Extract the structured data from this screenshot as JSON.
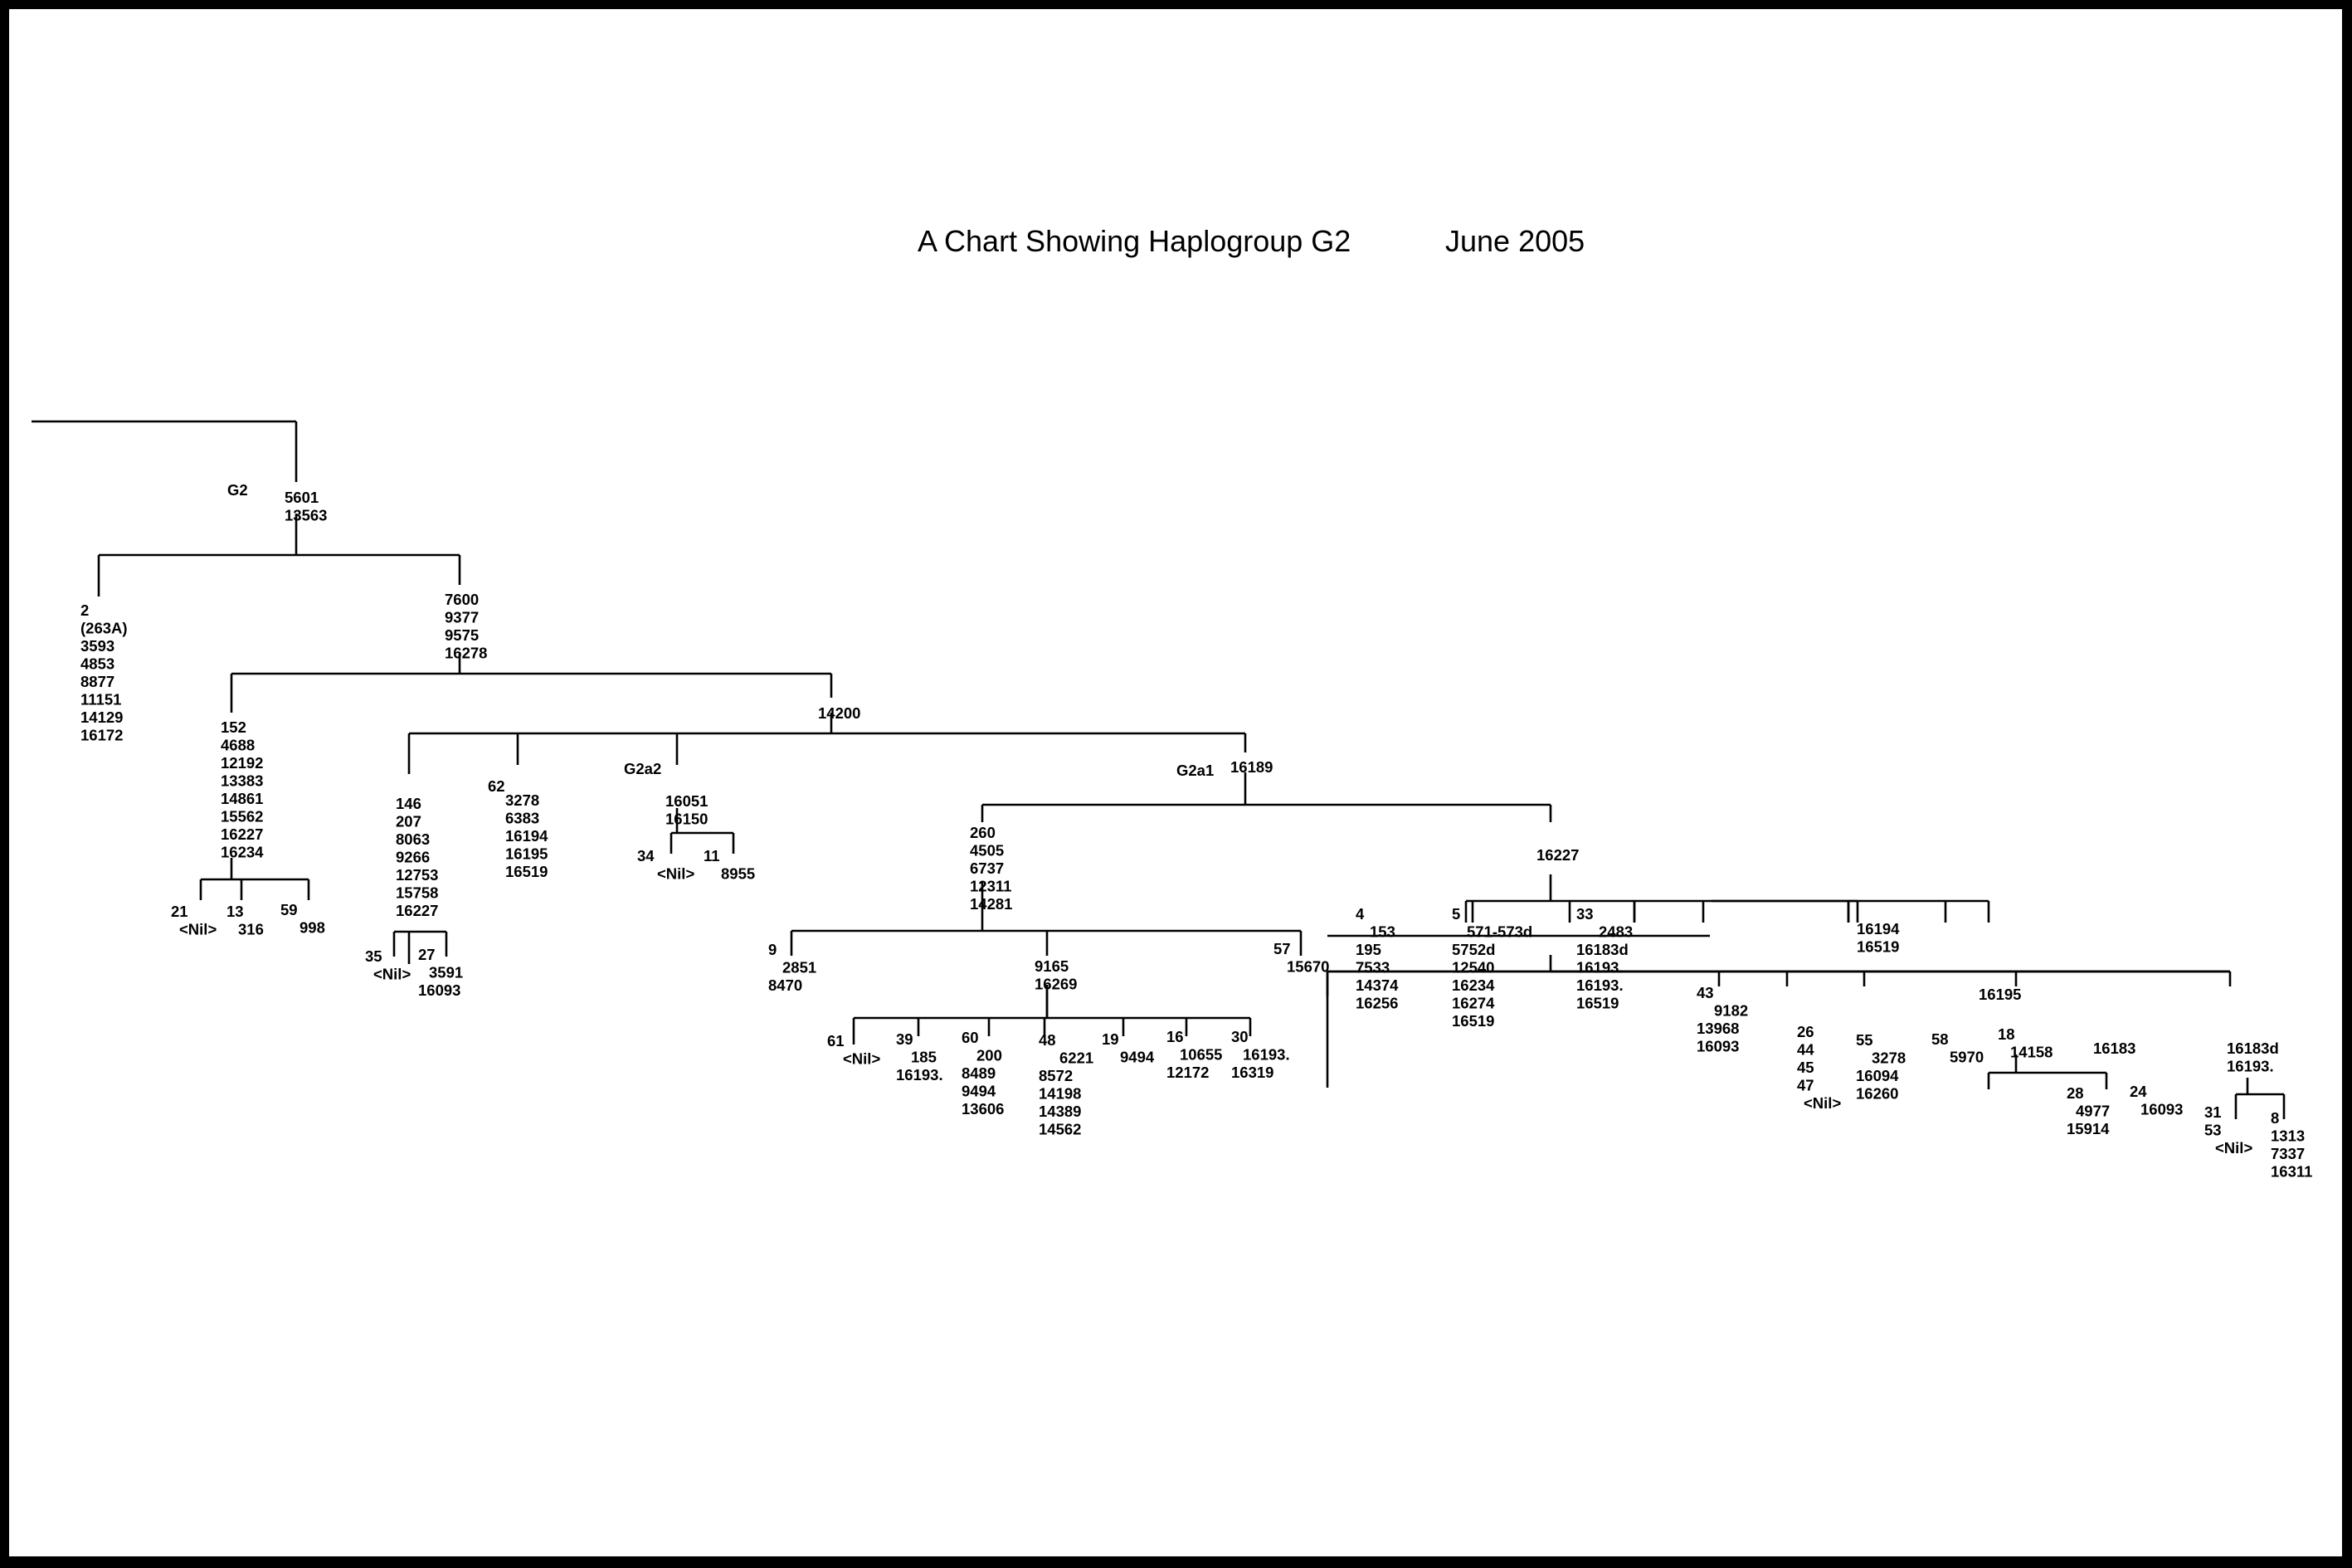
{
  "title": "A Chart Showing Haplogroup G2",
  "date": "June 2005",
  "nodes": {
    "g2_label": "G2",
    "g2": [
      "5601",
      "13563"
    ],
    "n2": [
      "2",
      "(263A)",
      "3593",
      "4853",
      "8877",
      "11151",
      "14129",
      "16172"
    ],
    "n7600": [
      "7600",
      "9377",
      "9575",
      "16278"
    ],
    "n152": [
      "152",
      "4688",
      "12192",
      "13383",
      "14861",
      "15562",
      "16227",
      "16234"
    ],
    "n21": [
      "21",
      "<Nil>"
    ],
    "n13": [
      "13",
      "316"
    ],
    "n59": [
      "59",
      "998"
    ],
    "n14200": [
      "14200"
    ],
    "n146": [
      "146",
      "207",
      "8063",
      "9266",
      "12753",
      "15758",
      "16227"
    ],
    "n35": [
      "35",
      "<Nil>"
    ],
    "n27": [
      "27",
      "3591",
      "16093"
    ],
    "n62_id": "62",
    "n62": [
      "3278",
      "6383",
      "16194",
      "16195",
      "16519"
    ],
    "g2a2_label": "G2a2",
    "g2a2": [
      "16051",
      "16150"
    ],
    "n34": [
      "34",
      "<Nil>"
    ],
    "n11": [
      "11",
      "8955"
    ],
    "g2a1_label": "G2a1",
    "g2a1": [
      "16189"
    ],
    "n260": [
      "260",
      "4505",
      "6737",
      "12311",
      "14281"
    ],
    "n9": [
      "9",
      "2851",
      "8470"
    ],
    "n9165": [
      "9165",
      "16269"
    ],
    "n57": [
      "57",
      "15670"
    ],
    "n61": [
      "61",
      "<Nil>"
    ],
    "n39": [
      "39",
      "185",
      "16193."
    ],
    "n60": [
      "60",
      "200",
      "8489",
      "9494",
      "13606"
    ],
    "n48": [
      "48",
      "6221",
      "8572",
      "14198",
      "14389",
      "14562"
    ],
    "n19": [
      "19",
      "9494"
    ],
    "n16": [
      "16",
      "10655",
      "12172"
    ],
    "n30": [
      "30",
      "16193.",
      "16319"
    ],
    "n16227": [
      "16227"
    ],
    "n4": [
      "4",
      "153",
      "195",
      "7533",
      "14374",
      "16256"
    ],
    "n5": [
      "5",
      "571-573d",
      "5752d",
      "12540",
      "16234",
      "16274",
      "16519"
    ],
    "n33": [
      "33",
      "2483",
      "16183d",
      "16193.",
      "16193.",
      "16519"
    ],
    "n16194": [
      "16194",
      "16519"
    ],
    "n43": [
      "43",
      "9182",
      "13968",
      "16093"
    ],
    "n16195": [
      "16195"
    ],
    "n26": [
      "26",
      "44",
      "45",
      "47",
      "<Nil>"
    ],
    "n55": [
      "55",
      "3278",
      "16094",
      "16260"
    ],
    "n58": [
      "58",
      "5970"
    ],
    "n18": [
      "18",
      "14158"
    ],
    "n16183": [
      "16183"
    ],
    "n28": [
      "28",
      "4977",
      "15914"
    ],
    "n24": [
      "24",
      "16093"
    ],
    "n16183d": [
      "16183d",
      "16193."
    ],
    "n31": [
      "31",
      "53",
      "<Nil>"
    ],
    "n8": [
      "8",
      "1313",
      "7337",
      "16311"
    ]
  }
}
